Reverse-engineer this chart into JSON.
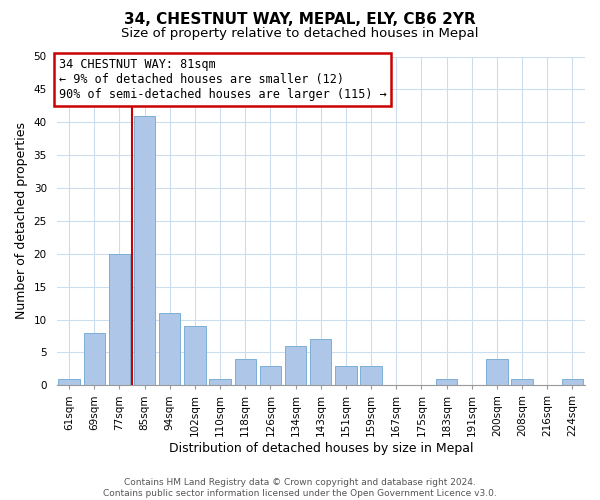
{
  "title": "34, CHESTNUT WAY, MEPAL, ELY, CB6 2YR",
  "subtitle": "Size of property relative to detached houses in Mepal",
  "xlabel": "Distribution of detached houses by size in Mepal",
  "ylabel": "Number of detached properties",
  "bar_labels": [
    "61sqm",
    "69sqm",
    "77sqm",
    "85sqm",
    "94sqm",
    "102sqm",
    "110sqm",
    "118sqm",
    "126sqm",
    "134sqm",
    "143sqm",
    "151sqm",
    "159sqm",
    "167sqm",
    "175sqm",
    "183sqm",
    "191sqm",
    "200sqm",
    "208sqm",
    "216sqm",
    "224sqm"
  ],
  "bar_values": [
    1,
    8,
    20,
    41,
    11,
    9,
    1,
    4,
    3,
    6,
    7,
    3,
    3,
    0,
    0,
    1,
    0,
    4,
    1,
    0,
    1
  ],
  "bar_color": "#aec6e8",
  "bar_edge_color": "#7bafd4",
  "vline_color": "#cc0000",
  "vline_x_index": 2.5,
  "annotation_title": "34 CHESTNUT WAY: 81sqm",
  "annotation_line1": "← 9% of detached houses are smaller (12)",
  "annotation_line2": "90% of semi-detached houses are larger (115) →",
  "annotation_box_color": "#ffffff",
  "annotation_box_edge_color": "#cc0000",
  "ylim": [
    0,
    50
  ],
  "footer1": "Contains HM Land Registry data © Crown copyright and database right 2024.",
  "footer2": "Contains public sector information licensed under the Open Government Licence v3.0.",
  "background_color": "#ffffff",
  "grid_color": "#ccddee",
  "title_fontsize": 11,
  "subtitle_fontsize": 9.5,
  "axis_label_fontsize": 9,
  "tick_fontsize": 7.5,
  "footer_fontsize": 6.5,
  "annot_fontsize": 8.5
}
